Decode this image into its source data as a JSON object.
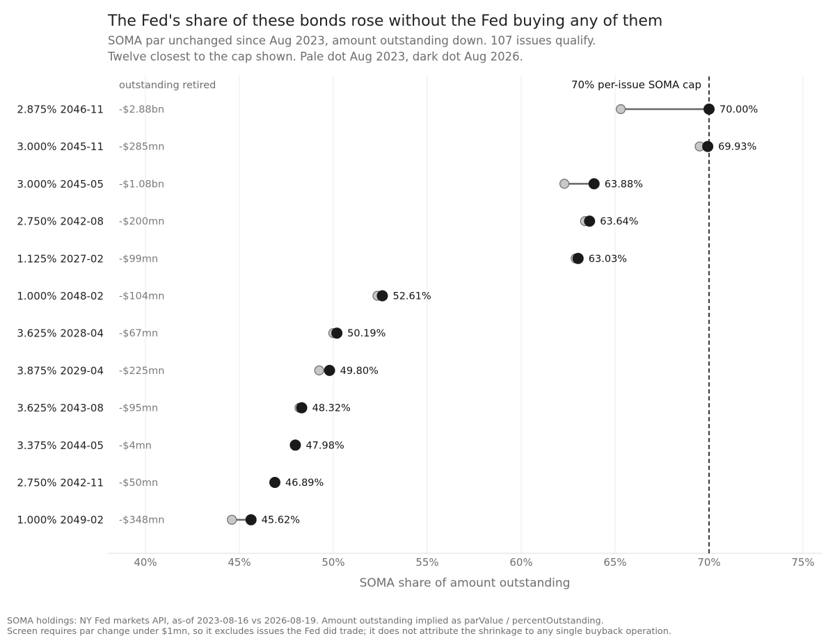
{
  "chart_data": {
    "type": "dot",
    "title": "The Fed's share of these bonds rose without the Fed buying any of them",
    "subtitle": [
      "SOMA par unchanged since Aug 2023, amount outstanding down. 107 issues qualify.",
      "Twelve closest to the cap shown. Pale dot Aug 2023, dark dot Aug 2026."
    ],
    "xlabel": "SOMA share of amount outstanding",
    "xlim": [
      38,
      76
    ],
    "xticks": [
      40,
      45,
      50,
      55,
      60,
      65,
      70,
      75
    ],
    "xtick_labels": [
      "40%",
      "45%",
      "50%",
      "55%",
      "60%",
      "65%",
      "70%",
      "75%"
    ],
    "retired_header": "outstanding retired",
    "cap": {
      "value": 70,
      "label": "70% per-issue SOMA cap"
    },
    "series_colors": {
      "aug_2023": "#c8c8c8",
      "aug_2026": "#1a1a1a",
      "connector": "#666666",
      "cap_line": "#222222"
    },
    "grid": "vertical",
    "rows": [
      {
        "issue": "2.875% 2046-11",
        "retired": "-$2.88bn",
        "aug_2023": 65.3,
        "aug_2026": 70.0,
        "label": "70.00%"
      },
      {
        "issue": "3.000% 2045-11",
        "retired": "-$285mn",
        "aug_2023": 69.5,
        "aug_2026": 69.93,
        "label": "69.93%"
      },
      {
        "issue": "3.000% 2045-05",
        "retired": "-$1.08bn",
        "aug_2023": 62.3,
        "aug_2026": 63.88,
        "label": "63.88%"
      },
      {
        "issue": "2.750% 2042-08",
        "retired": "-$200mn",
        "aug_2023": 63.4,
        "aug_2026": 63.64,
        "label": "63.64%"
      },
      {
        "issue": "1.125% 2027-02",
        "retired": "-$99mn",
        "aug_2023": 62.9,
        "aug_2026": 63.03,
        "label": "63.03%"
      },
      {
        "issue": "1.000% 2048-02",
        "retired": "-$104mn",
        "aug_2023": 52.35,
        "aug_2026": 52.61,
        "label": "52.61%"
      },
      {
        "issue": "3.625% 2028-04",
        "retired": "-$67mn",
        "aug_2023": 50.0,
        "aug_2026": 50.19,
        "label": "50.19%"
      },
      {
        "issue": "3.875% 2029-04",
        "retired": "-$225mn",
        "aug_2023": 49.25,
        "aug_2026": 49.8,
        "label": "49.80%"
      },
      {
        "issue": "3.625% 2043-08",
        "retired": "-$95mn",
        "aug_2023": 48.2,
        "aug_2026": 48.32,
        "label": "48.32%"
      },
      {
        "issue": "3.375% 2044-05",
        "retired": "-$4mn",
        "aug_2023": 47.97,
        "aug_2026": 47.98,
        "label": "47.98%"
      },
      {
        "issue": "2.750% 2042-11",
        "retired": "-$50mn",
        "aug_2023": 46.87,
        "aug_2026": 46.89,
        "label": "46.89%"
      },
      {
        "issue": "1.000% 2049-02",
        "retired": "-$348mn",
        "aug_2023": 44.6,
        "aug_2026": 45.62,
        "label": "45.62%"
      }
    ],
    "footer": [
      "SOMA holdings: NY Fed markets API, as-of 2023-08-16 vs 2026-08-19. Amount outstanding implied as parValue / percentOutstanding.",
      "Screen requires par change under $1mn, so it excludes issues the Fed did trade; it does not attribute the shrinkage to any single buyback operation."
    ]
  }
}
